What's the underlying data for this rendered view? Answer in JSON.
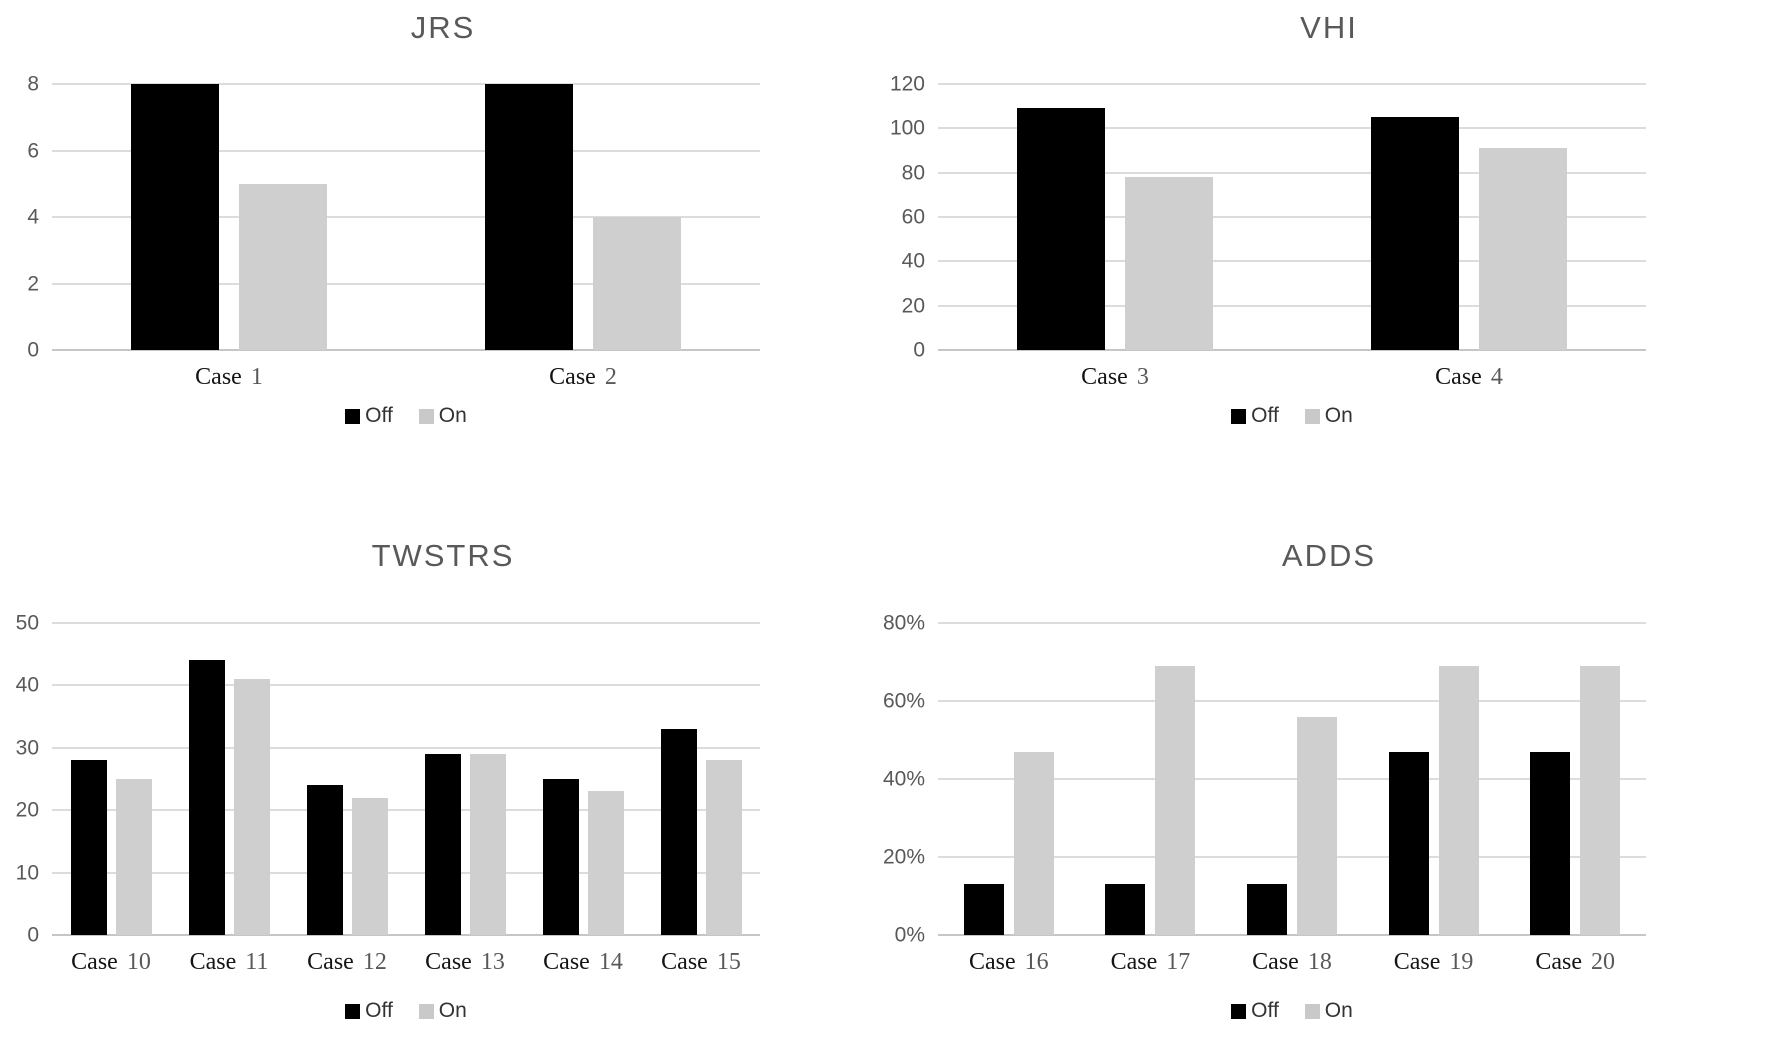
{
  "figure": {
    "background": "#ffffff"
  },
  "colors": {
    "off_bar": "#000000",
    "on_bar": "#cfcfcf",
    "gridline": "#dcdcdc",
    "baseline": "#c6c6c6",
    "title_text": "#595959",
    "tick_text": "#595959",
    "case_text": "#141414",
    "case_number_text": "#595959",
    "legend_text": "#333333",
    "legend_on_swatch": "#c9c9c9"
  },
  "legend": {
    "off_label": "Off",
    "on_label": "On"
  },
  "chart_data": [
    {
      "type": "bar",
      "title": "JRS",
      "categories": [
        "Case 1",
        "Case 2"
      ],
      "series": [
        {
          "name": "Off",
          "values": [
            8,
            8
          ]
        },
        {
          "name": "On",
          "values": [
            5,
            4
          ]
        }
      ],
      "xlabel": "",
      "ylabel": "",
      "ylim": [
        0,
        8
      ],
      "yticks": [
        0,
        2,
        4,
        6,
        8
      ],
      "y_format": "number",
      "grid": true,
      "legend_position": "bottom"
    },
    {
      "type": "bar",
      "title": "VHI",
      "categories": [
        "Case 3",
        "Case 4"
      ],
      "series": [
        {
          "name": "Off",
          "values": [
            109,
            105
          ]
        },
        {
          "name": "On",
          "values": [
            78,
            91
          ]
        }
      ],
      "xlabel": "",
      "ylabel": "",
      "ylim": [
        0,
        120
      ],
      "yticks": [
        0,
        20,
        40,
        60,
        80,
        100,
        120
      ],
      "y_format": "number",
      "grid": true,
      "legend_position": "bottom"
    },
    {
      "type": "bar",
      "title": "TWSTRS",
      "categories": [
        "Case 10",
        "Case 11",
        "Case 12",
        "Case 13",
        "Case 14",
        "Case 15"
      ],
      "series": [
        {
          "name": "Off",
          "values": [
            28,
            44,
            24,
            29,
            25,
            33
          ]
        },
        {
          "name": "On",
          "values": [
            25,
            41,
            22,
            29,
            23,
            28
          ]
        }
      ],
      "xlabel": "",
      "ylabel": "",
      "ylim": [
        0,
        50
      ],
      "yticks": [
        0,
        10,
        20,
        30,
        40,
        50
      ],
      "y_format": "number",
      "grid": true,
      "legend_position": "bottom"
    },
    {
      "type": "bar",
      "title": "ADDS",
      "categories": [
        "Case 16",
        "Case 17",
        "Case 18",
        "Case 19",
        "Case 20"
      ],
      "series": [
        {
          "name": "Off",
          "values": [
            13,
            13,
            13,
            47,
            47
          ]
        },
        {
          "name": "On",
          "values": [
            47,
            69,
            56,
            69,
            69
          ]
        }
      ],
      "xlabel": "",
      "ylabel": "",
      "ylim": [
        0,
        80
      ],
      "yticks": [
        0,
        20,
        40,
        60,
        80
      ],
      "y_format": "percent",
      "grid": true,
      "legend_position": "bottom"
    }
  ]
}
